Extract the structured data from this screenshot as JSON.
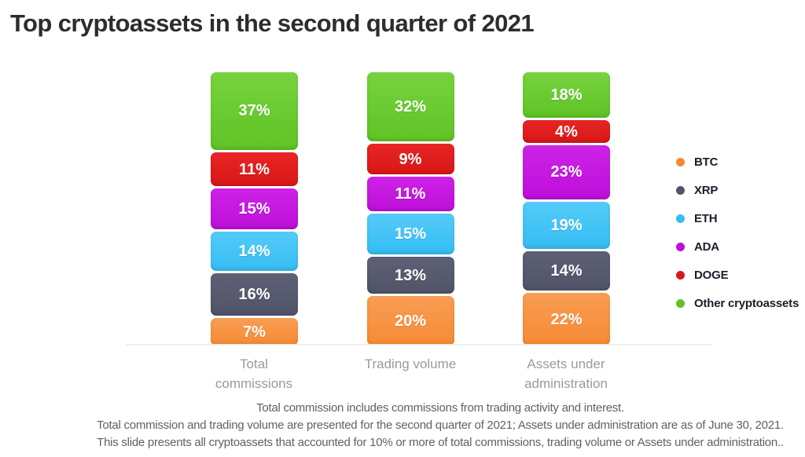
{
  "title": "Top cryptoassets in the second quarter of 2021",
  "chart_data": {
    "type": "bar",
    "variant": "stacked-vertical",
    "title": "Top cryptoassets in the second quarter of 2021",
    "categories": [
      "Total\ncommissions",
      "Trading volume",
      "Assets under\nadministration"
    ],
    "series": [
      {
        "name": "BTC",
        "color": "#f68a34",
        "color_light": "#f99d53",
        "values": [
          7,
          20,
          22
        ]
      },
      {
        "name": "XRP",
        "color": "#515468",
        "color_light": "#5e6175",
        "values": [
          16,
          13,
          14
        ]
      },
      {
        "name": "ETH",
        "color": "#35bdf4",
        "color_light": "#54cbf8",
        "values": [
          14,
          15,
          19
        ]
      },
      {
        "name": "ADA",
        "color": "#bd0fd8",
        "color_light": "#cf22e8",
        "values": [
          15,
          11,
          23
        ]
      },
      {
        "name": "DOGE",
        "color": "#da1717",
        "color_light": "#e82525",
        "values": [
          11,
          9,
          4
        ]
      },
      {
        "name": "Other cryptoassets",
        "color": "#5fc326",
        "color_light": "#77d33e",
        "values": [
          37,
          32,
          18
        ]
      }
    ],
    "value_suffix": "%",
    "ylim": [
      0,
      100
    ],
    "grid": false,
    "legend_position": "right",
    "stack_order_note": "BTC at bottom, Other cryptoassets at top"
  },
  "footnotes": [
    "Total commission includes commissions from trading activity and interest.",
    "Total commission and trading volume are presented for the second quarter of 2021; Assets under administration are as of June 30, 2021.",
    "This slide presents all cryptoassets that accounted for 10% or more of total commissions, trading volume or Assets under administration.."
  ]
}
